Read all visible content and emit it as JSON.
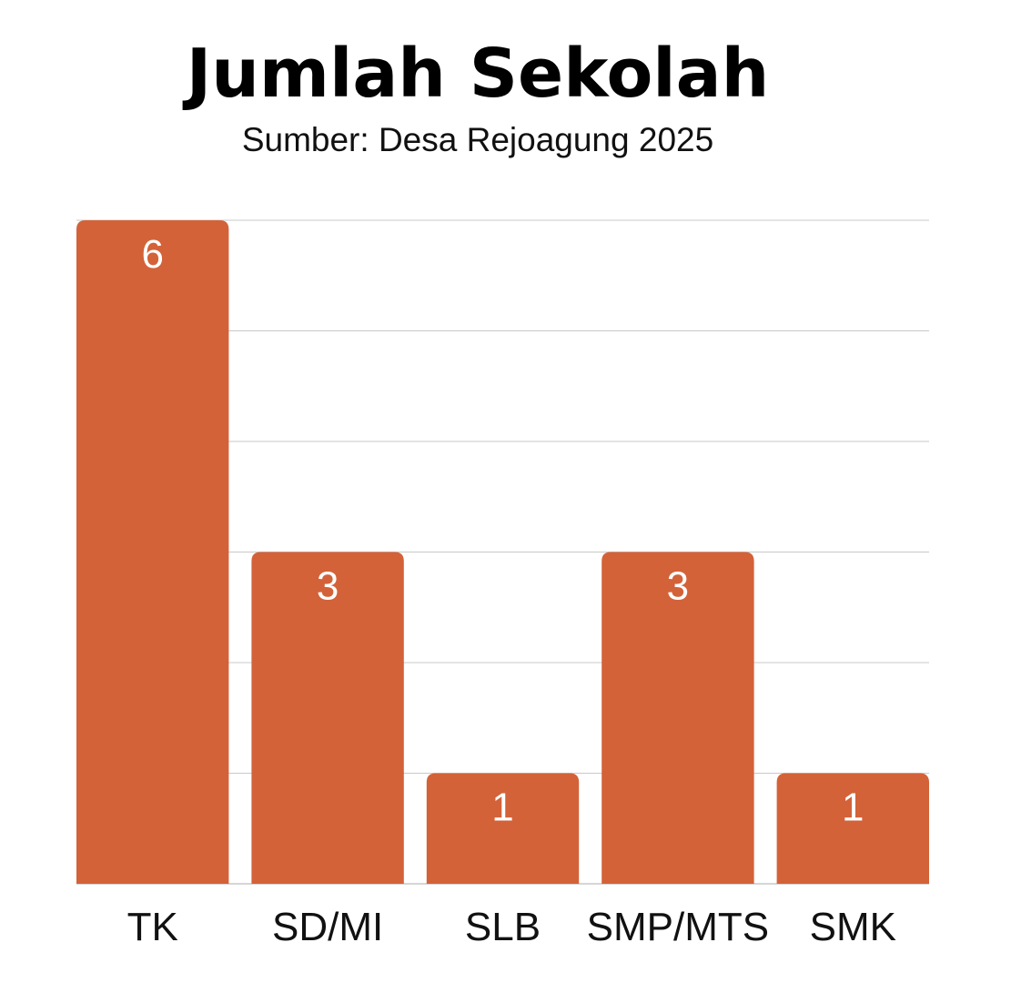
{
  "chart_data": {
    "type": "bar",
    "title": "Jumlah Sekolah",
    "subtitle": "Sumber: Desa Rejoagung 2025",
    "categories": [
      "TK",
      "SD/MI",
      "SLB",
      "SMP/MTS",
      "SMK"
    ],
    "values": [
      6,
      3,
      1,
      3,
      1
    ],
    "ylim": [
      0,
      6
    ],
    "grid": true,
    "data_labels": true,
    "bar_color": "#d36239",
    "grid_color": "#c8c8c8",
    "label_color": "#ffffff"
  }
}
